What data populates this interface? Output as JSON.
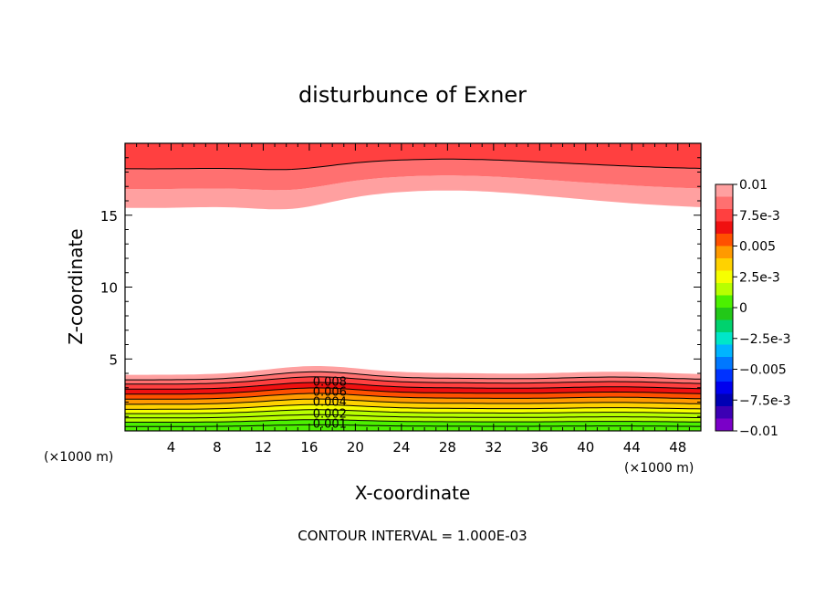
{
  "chart_data": {
    "type": "contour",
    "title": "disturbunce of Exner",
    "xlabel": "X-coordinate",
    "ylabel": "Z-coordinate",
    "x_unit": "(×1000 m)",
    "z_unit": "(×1000 m)",
    "footer": "CONTOUR INTERVAL = 1.000E-03",
    "xlim": [
      0,
      50
    ],
    "ylim": [
      0,
      20
    ],
    "x_ticks": [
      "4",
      "8",
      "12",
      "16",
      "20",
      "24",
      "28",
      "32",
      "36",
      "40",
      "44",
      "48"
    ],
    "y_ticks": [
      "5",
      "10",
      "15"
    ],
    "contour_labels": [
      "0.008",
      "0.006",
      "0.004",
      "0.002",
      "0.001"
    ],
    "colorbar": {
      "range": [
        -0.01,
        0.01
      ],
      "tick_labels": [
        "0.01",
        "7.5e-3",
        "0.005",
        "2.5e-3",
        "0",
        "-2.5e-3",
        "-0.005",
        "-7.5e-3",
        "-0.01"
      ],
      "colors": [
        "#ffa0a0",
        "#ff7070",
        "#ff4040",
        "#f01010",
        "#ff5000",
        "#ff9a00",
        "#ffd200",
        "#f6ff00",
        "#b8ff00",
        "#4cf000",
        "#22c818",
        "#00d26e",
        "#00e6c8",
        "#00b4ff",
        "#0078ff",
        "#0032ff",
        "#0000ee",
        "#0000b4",
        "#3c00b4",
        "#7a00c8"
      ]
    }
  }
}
